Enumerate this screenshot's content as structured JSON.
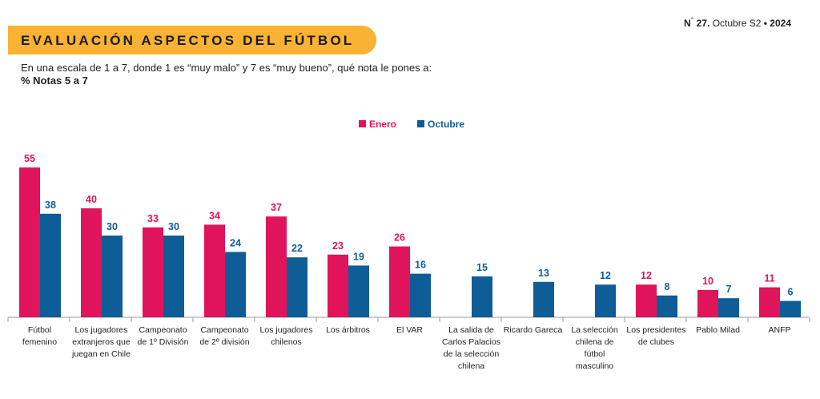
{
  "header": {
    "title": "EVALUACIÓN ASPECTOS DEL FÚTBOL",
    "issue_prefix": "N",
    "issue_degree": "°",
    "issue_number": "27.",
    "issue_period": "Octubre S2",
    "issue_sep": "•",
    "issue_year": "2024",
    "subtitle": "En una escala de 1 a 7, donde 1 es “muy malo” y 7 es “muy bueno”, qué nota le pones a:",
    "note": "% Notas 5 a 7"
  },
  "colors": {
    "enero": "#e0145a",
    "octubre": "#0e5d96",
    "accent": "#f9b233"
  },
  "chart_data": {
    "type": "bar",
    "categories": [
      [
        "Fútbol",
        "femenino"
      ],
      [
        "Los jugadores",
        "extranjeros que",
        "juegan en Chile"
      ],
      [
        "Campeonato",
        "de 1º División"
      ],
      [
        "Campeonato",
        "de 2º división"
      ],
      [
        "Los jugadores",
        "chilenos"
      ],
      [
        "Los árbitros"
      ],
      [
        "El VAR"
      ],
      [
        "La salida de",
        "Carlos Palacios",
        "de la selección",
        "chilena"
      ],
      [
        "Ricardo Gareca"
      ],
      [
        "La selección",
        "chilena de",
        "fútbol",
        "masculino"
      ],
      [
        "Los presidentes",
        "de clubes"
      ],
      [
        "Pablo Milad"
      ],
      [
        "ANFP"
      ]
    ],
    "series": [
      {
        "name": "Enero",
        "values": [
          55,
          40,
          33,
          34,
          37,
          23,
          26,
          null,
          null,
          null,
          12,
          10,
          11
        ]
      },
      {
        "name": "Octubre",
        "values": [
          38,
          30,
          30,
          24,
          22,
          19,
          16,
          15,
          13,
          12,
          8,
          7,
          6
        ]
      }
    ],
    "legend": "top-center"
  }
}
